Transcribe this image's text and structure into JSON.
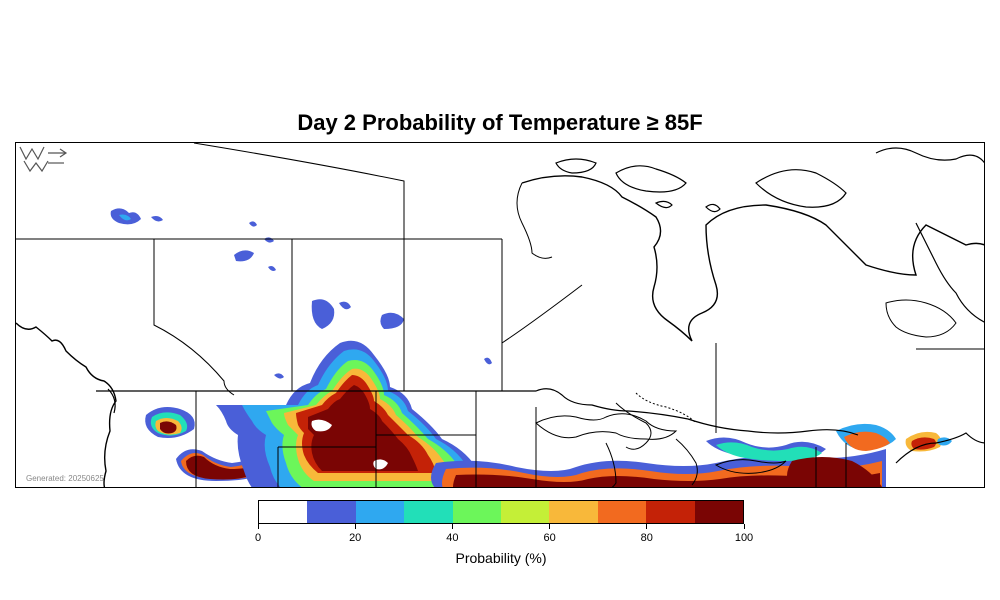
{
  "title": "Day 2 Probability of Temperature ≥ 85F",
  "generated_label": "Generated: 20250625",
  "logo_text": "WC",
  "colorbar": {
    "label": "Probability (%)",
    "ticks": [
      "0",
      "20",
      "40",
      "60",
      "80",
      "100"
    ],
    "colors": [
      "#ffffff",
      "#4a5fd8",
      "#2fa8f0",
      "#22dfb8",
      "#6cf65a",
      "#c4ef37",
      "#f8b83a",
      "#f26a1f",
      "#c42207",
      "#7a0504"
    ]
  },
  "map": {
    "region": "Canada and northern United States",
    "legend_reference": "probability bins 0-100%"
  }
}
